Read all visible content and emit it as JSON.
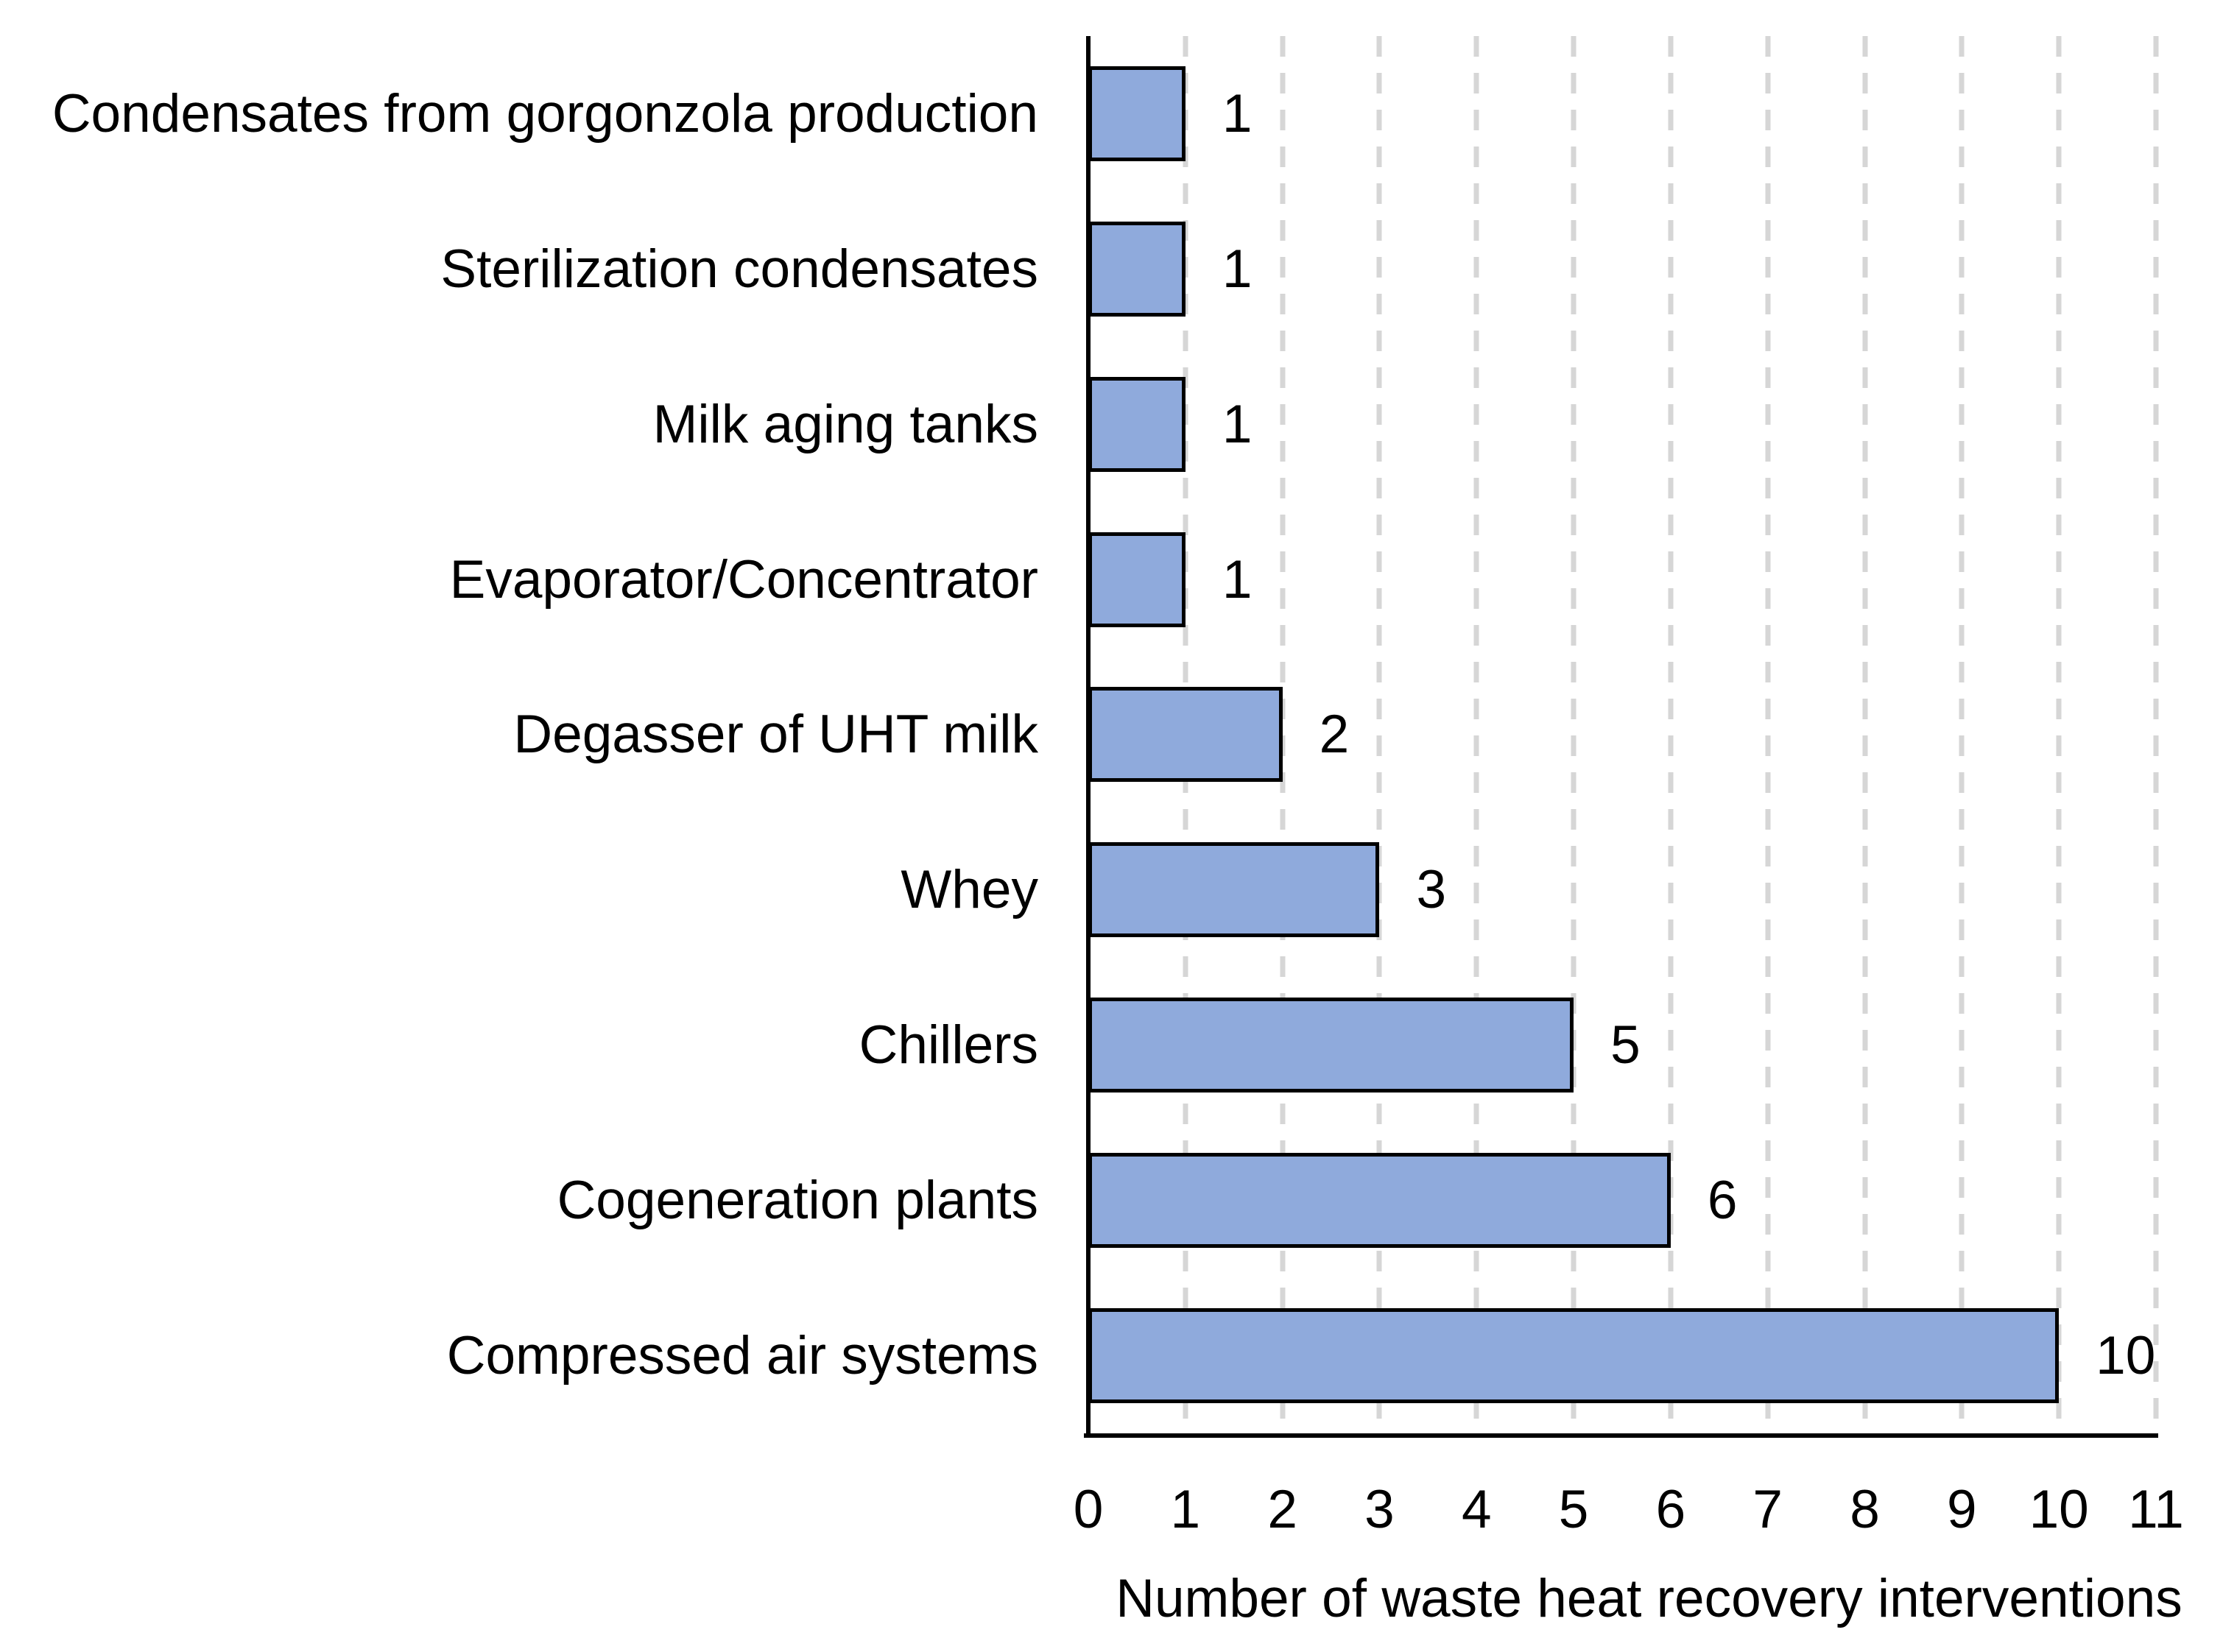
{
  "chart_data": {
    "type": "bar",
    "orientation": "horizontal",
    "categories": [
      "Condensates from gorgonzola production",
      "Sterilization condensates",
      "Milk aging tanks",
      "Evaporator/Concentrator",
      "Degasser of UHT milk",
      "Whey",
      "Chillers",
      "Cogeneration plants",
      "Compressed air systems"
    ],
    "values": [
      1,
      1,
      1,
      1,
      2,
      3,
      5,
      6,
      10
    ],
    "data_labels": [
      "1",
      "1",
      "1",
      "1",
      "2",
      "3",
      "5",
      "6",
      "10"
    ],
    "xlabel": "Number of waste heat recovery interventions",
    "x_ticks": [
      "0",
      "1",
      "2",
      "3",
      "4",
      "5",
      "6",
      "7",
      "8",
      "9",
      "10",
      "11"
    ],
    "xlim": [
      0,
      11
    ],
    "grid": "vertical dashed gridlines at each integer",
    "legend": "none",
    "colors": {
      "bar_fill": "#8FAADC",
      "bar_border": "#000000",
      "gridline": "#D6D6D6",
      "axis": "#000000",
      "text": "#000000",
      "background": "#FFFFFF"
    }
  }
}
